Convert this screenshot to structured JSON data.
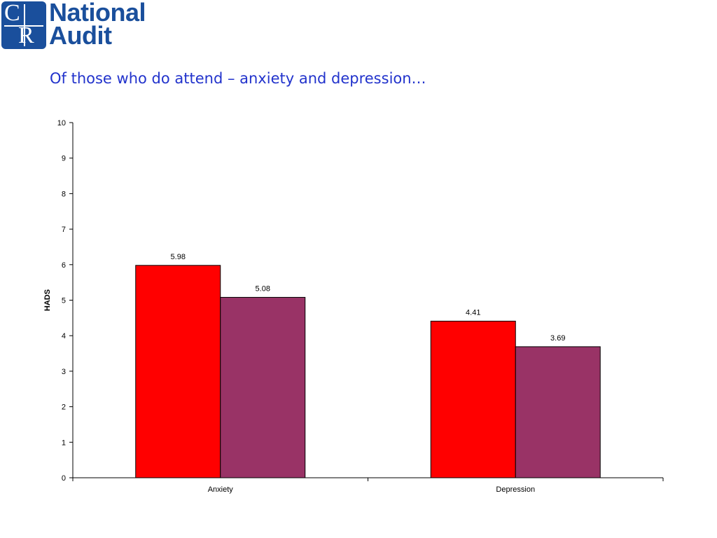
{
  "logo": {
    "mark_letters": [
      "C",
      "R"
    ],
    "line1": "National",
    "line2": "Audit",
    "color": "#1a4f9c"
  },
  "page_title": "Of those who do attend – anxiety and depression…",
  "chart_data": {
    "type": "bar",
    "categories": [
      "Anxiety",
      "Depression"
    ],
    "series": [
      {
        "color": "#ff0000",
        "values": [
          5.98,
          4.41
        ]
      },
      {
        "color": "#993366",
        "values": [
          5.08,
          3.69
        ]
      }
    ],
    "data_labels": [
      [
        "5.98",
        "4.41"
      ],
      [
        "5.08",
        "3.69"
      ]
    ],
    "title": "",
    "xlabel": "",
    "ylabel": "HADS",
    "ylim": [
      0,
      10
    ],
    "yticks": [
      0,
      1,
      2,
      3,
      4,
      5,
      6,
      7,
      8,
      9,
      10
    ],
    "grid": false,
    "legend": "none"
  }
}
